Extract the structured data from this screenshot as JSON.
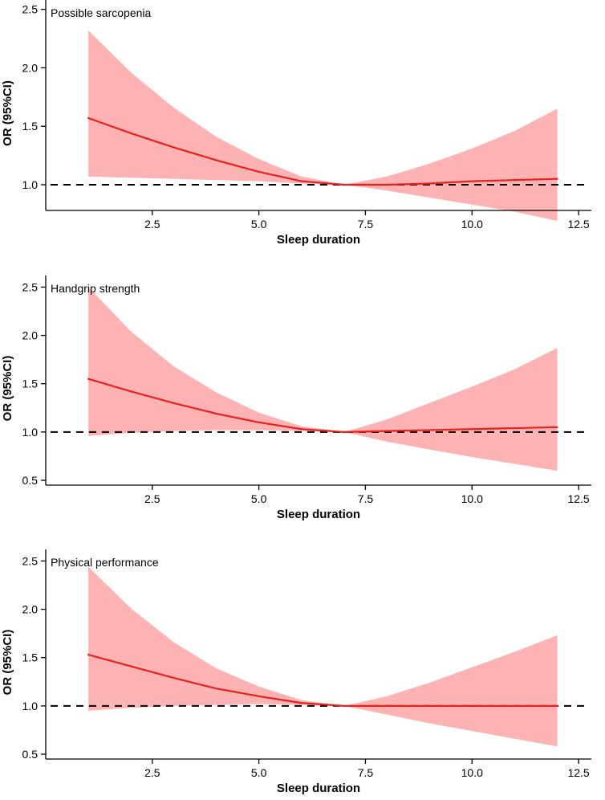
{
  "figure": {
    "colors": {
      "line": "#e8211d",
      "band": "#fdb3b3",
      "reference": "#000000",
      "axis": "#000000"
    }
  },
  "chart_data": [
    {
      "type": "line",
      "title": "Possible sarcopenia",
      "xlabel": "Sleep duration",
      "ylabel": "OR (95%CI)",
      "xlim": [
        0.0,
        12.8
      ],
      "ylim": [
        0.78,
        2.58
      ],
      "xticks": [
        2.5,
        5.0,
        7.5,
        10.0,
        12.5
      ],
      "xtick_labels": [
        "2.5",
        "5.0",
        "7.5",
        "10.0",
        "12.5"
      ],
      "yticks": [
        1.0,
        1.5,
        2.0,
        2.5
      ],
      "ytick_labels": [
        "1.0",
        "1.5",
        "2.0",
        "2.5"
      ],
      "reference_line": 1.0,
      "series": [
        {
          "name": "OR",
          "x": [
            1.0,
            2.0,
            3.0,
            4.0,
            5.0,
            6.0,
            7.0,
            8.0,
            9.0,
            10.0,
            11.0,
            12.0
          ],
          "y": [
            1.57,
            1.44,
            1.32,
            1.21,
            1.11,
            1.03,
            1.0,
            1.0,
            1.01,
            1.03,
            1.04,
            1.05
          ],
          "lower": [
            1.07,
            1.06,
            1.05,
            1.04,
            1.03,
            1.01,
            1.0,
            0.95,
            0.89,
            0.83,
            0.77,
            0.69
          ],
          "upper": [
            2.32,
            1.96,
            1.66,
            1.41,
            1.22,
            1.07,
            1.0,
            1.07,
            1.18,
            1.31,
            1.46,
            1.65
          ]
        }
      ]
    },
    {
      "type": "line",
      "title": "Handgrip strength",
      "xlabel": "Sleep duration",
      "ylabel": "OR (95%CI)",
      "xlim": [
        0.0,
        12.8
      ],
      "ylim": [
        0.45,
        2.62
      ],
      "xticks": [
        2.5,
        5.0,
        7.5,
        10.0,
        12.5
      ],
      "xtick_labels": [
        "2.5",
        "5.0",
        "7.5",
        "10.0",
        "12.5"
      ],
      "yticks": [
        0.5,
        1.0,
        1.5,
        2.0,
        2.5
      ],
      "ytick_labels": [
        "0.5",
        "1.0",
        "1.5",
        "2.0",
        "2.5"
      ],
      "reference_line": 1.0,
      "series": [
        {
          "name": "OR",
          "x": [
            1.0,
            2.0,
            3.0,
            4.0,
            5.0,
            6.0,
            7.0,
            8.0,
            9.0,
            10.0,
            11.0,
            12.0
          ],
          "y": [
            1.55,
            1.42,
            1.3,
            1.19,
            1.1,
            1.03,
            1.0,
            1.01,
            1.02,
            1.03,
            1.04,
            1.05
          ],
          "lower": [
            0.96,
            0.99,
            1.01,
            1.02,
            1.02,
            1.01,
            1.0,
            0.9,
            0.82,
            0.74,
            0.67,
            0.6
          ],
          "upper": [
            2.5,
            2.04,
            1.68,
            1.41,
            1.2,
            1.06,
            1.0,
            1.13,
            1.3,
            1.47,
            1.65,
            1.87
          ]
        }
      ]
    },
    {
      "type": "line",
      "title": "Physical performance",
      "xlabel": "Sleep duration",
      "ylabel": "OR (95%CI)",
      "xlim": [
        0.0,
        12.8
      ],
      "ylim": [
        0.45,
        2.62
      ],
      "xticks": [
        2.5,
        5.0,
        7.5,
        10.0,
        12.5
      ],
      "xtick_labels": [
        "2.5",
        "5.0",
        "7.5",
        "10.0",
        "12.5"
      ],
      "yticks": [
        0.5,
        1.0,
        1.5,
        2.0,
        2.5
      ],
      "ytick_labels": [
        "0.5",
        "1.0",
        "1.5",
        "2.0",
        "2.5"
      ],
      "reference_line": 1.0,
      "series": [
        {
          "name": "OR",
          "x": [
            1.0,
            2.0,
            3.0,
            4.0,
            5.0,
            6.0,
            7.0,
            8.0,
            9.0,
            10.0,
            11.0,
            12.0
          ],
          "y": [
            1.53,
            1.41,
            1.29,
            1.18,
            1.1,
            1.03,
            1.0,
            1.0,
            1.0,
            1.0,
            1.0,
            1.0
          ],
          "lower": [
            0.95,
            0.98,
            1.0,
            1.01,
            1.02,
            1.01,
            1.0,
            0.91,
            0.82,
            0.74,
            0.66,
            0.58
          ],
          "upper": [
            2.44,
            2.01,
            1.66,
            1.39,
            1.2,
            1.06,
            1.0,
            1.1,
            1.24,
            1.4,
            1.56,
            1.73
          ]
        }
      ]
    }
  ]
}
